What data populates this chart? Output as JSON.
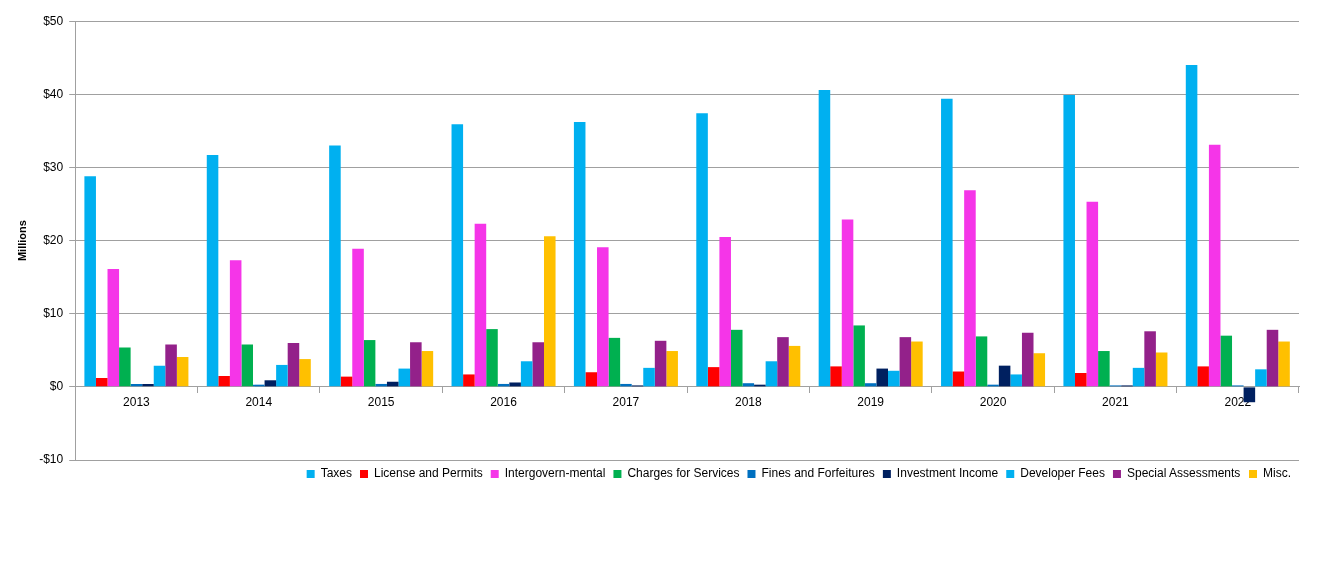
{
  "chart_data": {
    "type": "bar",
    "ylabel": "Millions",
    "categories": [
      "2013",
      "2014",
      "2015",
      "2016",
      "2017",
      "2018",
      "2019",
      "2020",
      "2021",
      "2022"
    ],
    "series": [
      {
        "name": "Taxes",
        "color": "#00b0f0",
        "values": [
          28.8,
          31.7,
          33.0,
          35.9,
          36.2,
          37.4,
          40.6,
          39.4,
          39.9,
          44.0
        ]
      },
      {
        "name": "License and Permits",
        "color": "#ff0000",
        "values": [
          1.2,
          1.5,
          1.4,
          1.7,
          2.0,
          2.7,
          2.8,
          2.1,
          1.9,
          2.8
        ]
      },
      {
        "name": "Intergovern-mental",
        "color": "#f535e8",
        "values": [
          16.1,
          17.3,
          18.9,
          22.3,
          19.1,
          20.5,
          22.9,
          26.9,
          25.3,
          33.1
        ]
      },
      {
        "name": "Charges for Services",
        "color": "#00b050",
        "values": [
          5.4,
          5.8,
          6.4,
          7.9,
          6.7,
          7.8,
          8.4,
          6.9,
          4.9,
          7.0
        ]
      },
      {
        "name": "Fines and Forfeitures",
        "color": "#0070c0",
        "values": [
          0.4,
          0.3,
          0.4,
          0.4,
          0.4,
          0.5,
          0.5,
          0.3,
          0.2,
          0.2
        ]
      },
      {
        "name": "Investment Income",
        "color": "#002060",
        "values": [
          0.4,
          0.9,
          0.7,
          0.6,
          0.2,
          0.3,
          2.5,
          2.9,
          0.2,
          -2.1
        ]
      },
      {
        "name": "Developer Fees",
        "color": "#00b0f0",
        "values": [
          2.9,
          3.0,
          2.5,
          3.5,
          2.6,
          3.5,
          2.2,
          1.7,
          2.6,
          2.4
        ]
      },
      {
        "name": "Special Assessments",
        "color": "#93218a",
        "values": [
          5.8,
          6.0,
          6.1,
          6.1,
          6.3,
          6.8,
          6.8,
          7.4,
          7.6,
          7.8
        ]
      },
      {
        "name": "Misc.",
        "color": "#ffc000",
        "values": [
          4.1,
          3.8,
          4.9,
          20.6,
          4.9,
          5.6,
          6.2,
          4.6,
          4.7,
          6.2
        ]
      }
    ],
    "ylim": [
      -10,
      50
    ],
    "yticks": [
      {
        "value": -10,
        "label": "-$10"
      },
      {
        "value": 0,
        "label": "$0"
      },
      {
        "value": 10,
        "label": "$10"
      },
      {
        "value": 20,
        "label": "$20"
      },
      {
        "value": 30,
        "label": "$30"
      },
      {
        "value": 40,
        "label": "$40"
      },
      {
        "value": 50,
        "label": "$50"
      }
    ],
    "grid": "y",
    "legend": "bottom"
  }
}
